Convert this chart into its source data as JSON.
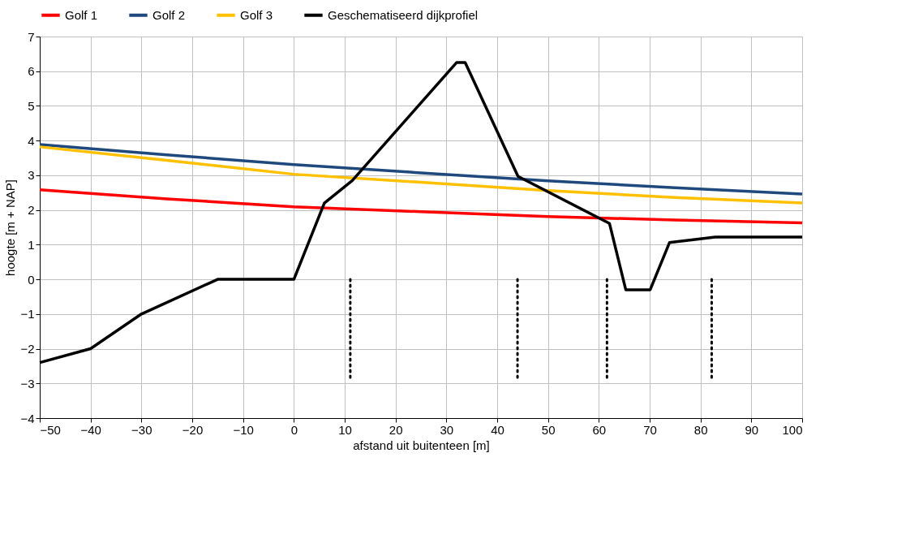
{
  "chart_data": {
    "type": "line",
    "xlabel": "afstand uit buitenteen  [m]",
    "ylabel": "hoogte [m + NAP]",
    "xlim": [
      -50,
      100
    ],
    "xticks": [
      -50,
      -40,
      -30,
      -20,
      -10,
      0,
      10,
      20,
      30,
      40,
      50,
      60,
      70,
      80,
      90,
      100
    ],
    "ylim": [
      -4,
      7
    ],
    "yticks": [
      -4,
      -3,
      -2,
      -1,
      0,
      1,
      2,
      3,
      4,
      5,
      6,
      7
    ],
    "grid": true,
    "legend": "top",
    "marker": "none",
    "series": [
      {
        "name": "Golf 1",
        "color": "#ff0000",
        "line_style": "solid",
        "x": [
          -50,
          -25,
          0,
          25,
          50,
          75,
          100
        ],
        "values": [
          2.58,
          2.32,
          2.09,
          1.95,
          1.81,
          1.71,
          1.63
        ]
      },
      {
        "name": "Golf 2",
        "color": "#1f497d",
        "line_style": "solid",
        "x": [
          -50,
          -25,
          0,
          25,
          50,
          75,
          100
        ],
        "values": [
          3.89,
          3.59,
          3.31,
          3.07,
          2.84,
          2.64,
          2.46
        ]
      },
      {
        "name": "Golf 3",
        "color": "#ffc000",
        "line_style": "solid",
        "x": [
          -50,
          -25,
          0,
          25,
          50,
          75,
          100
        ],
        "values": [
          3.82,
          3.43,
          3.03,
          2.8,
          2.56,
          2.36,
          2.2
        ]
      },
      {
        "name": "Geschematiseerd dijkprofiel",
        "color": "#000000",
        "line_style": "solid",
        "x": [
          -50,
          -40,
          -30,
          -15,
          0,
          6,
          11.5,
          32,
          33.7,
          44.1,
          62.1,
          65.3,
          70.1,
          73.9,
          82.9,
          100
        ],
        "values": [
          -2.4,
          -2,
          -1,
          0,
          0,
          2.2,
          2.85,
          6.25,
          6.25,
          2.97,
          1.61,
          -0.3,
          -0.3,
          1.06,
          1.22,
          1.22
        ]
      },
      {
        "color": "#000000",
        "line_style": "dotted",
        "x": [
          11.1,
          11.1
        ],
        "values": [
          0,
          -2.9
        ]
      },
      {
        "color": "#000000",
        "line_style": "dotted",
        "x": [
          44,
          44
        ],
        "values": [
          0,
          -2.9
        ]
      },
      {
        "color": "#000000",
        "line_style": "dotted",
        "x": [
          61.6,
          61.6
        ],
        "values": [
          0,
          -2.9
        ]
      },
      {
        "color": "#000000",
        "line_style": "dotted",
        "x": [
          82.2,
          82.2
        ],
        "values": [
          0,
          -2.9
        ]
      }
    ]
  }
}
